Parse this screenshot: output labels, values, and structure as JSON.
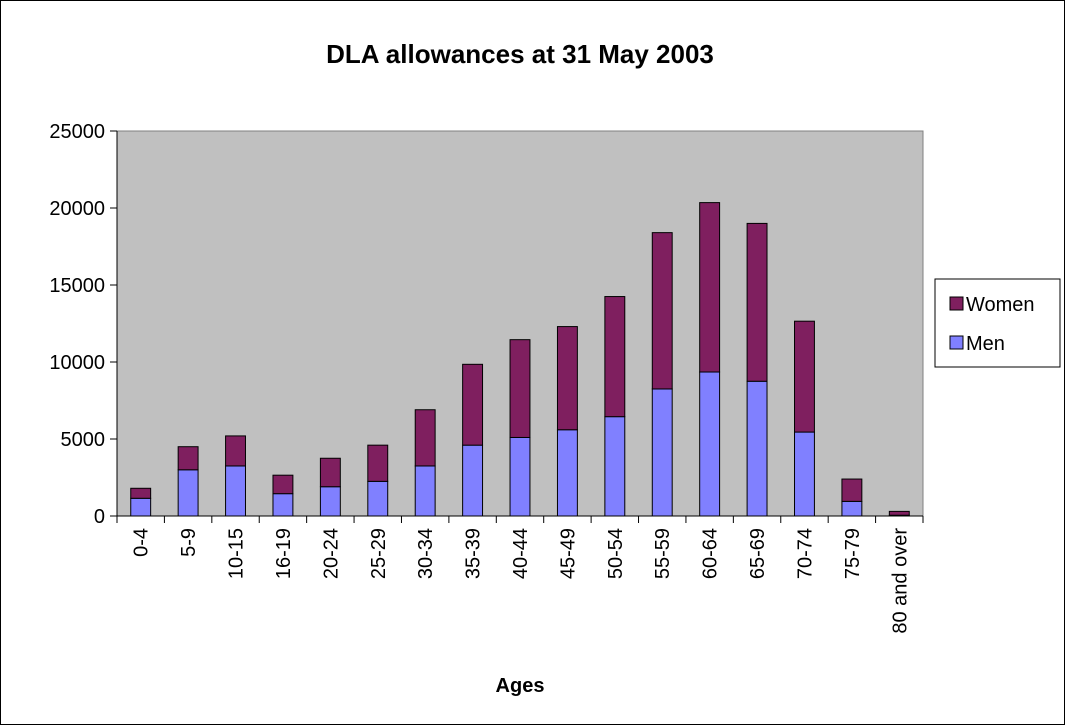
{
  "chart_data": {
    "type": "bar",
    "stacked": true,
    "title": "DLA allowances at 31 May 2003",
    "xlabel": "Ages",
    "ylabel": "",
    "ylim": [
      0,
      25000
    ],
    "yticks": [
      "0",
      "5000",
      "10000",
      "15000",
      "20000",
      "25000"
    ],
    "categories": [
      "0-4",
      "5-9",
      "10-15",
      "16-19",
      "20-24",
      "25-29",
      "30-34",
      "35-39",
      "40-44",
      "45-49",
      "50-54",
      "55-59",
      "60-64",
      "65-69",
      "70-74",
      "75-79",
      "80 and over"
    ],
    "series": [
      {
        "name": "Men",
        "color": "#8080ff",
        "values": [
          1150,
          3000,
          3250,
          1450,
          1900,
          2250,
          3250,
          4600,
          5100,
          5600,
          6450,
          8250,
          9350,
          8750,
          5450,
          950,
          50
        ]
      },
      {
        "name": "Women",
        "color": "#7f1f5f",
        "values": [
          650,
          1500,
          1950,
          1200,
          1850,
          2350,
          3650,
          5250,
          6350,
          6700,
          7800,
          10150,
          11000,
          10250,
          7200,
          1450,
          250
        ]
      }
    ],
    "legend": {
      "position": "right",
      "entries": [
        "Women",
        "Men"
      ]
    },
    "plot_background": "#c0c0c0",
    "grid": false
  }
}
